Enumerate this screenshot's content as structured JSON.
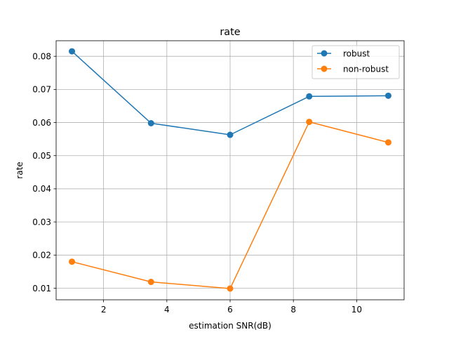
{
  "chart_data": {
    "type": "line",
    "title": "rate",
    "xlabel": "estimation SNR(dB)",
    "ylabel": "rate",
    "x": [
      1,
      3.5,
      6,
      8.5,
      11
    ],
    "xlim": [
      0.5,
      11.5
    ],
    "ylim": [
      0.0065,
      0.0847
    ],
    "xticks": [
      2,
      4,
      6,
      8,
      10
    ],
    "xtick_labels": [
      "2",
      "4",
      "6",
      "8",
      "10"
    ],
    "yticks": [
      0.01,
      0.02,
      0.03,
      0.04,
      0.05,
      0.06,
      0.07,
      0.08
    ],
    "ytick_labels": [
      "0.01",
      "0.02",
      "0.03",
      "0.04",
      "0.05",
      "0.06",
      "0.07",
      "0.08"
    ],
    "grid": true,
    "legend_position": "top-right",
    "series": [
      {
        "name": "robust",
        "color": "#1f77b4",
        "marker": "circle",
        "values": [
          0.0815,
          0.0598,
          0.0563,
          0.0679,
          0.0681
        ]
      },
      {
        "name": "non-robust",
        "color": "#ff7f0e",
        "marker": "circle",
        "values": [
          0.018,
          0.0119,
          0.0099,
          0.0602,
          0.054
        ]
      }
    ]
  }
}
